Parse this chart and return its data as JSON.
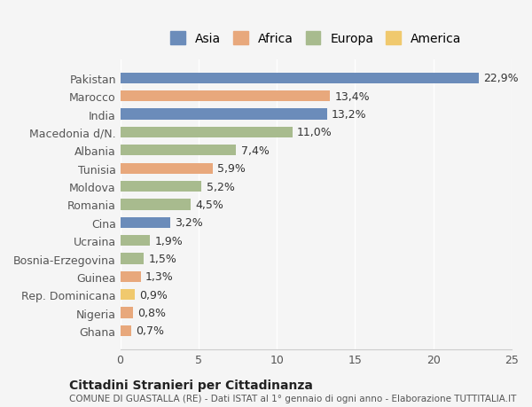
{
  "categories": [
    "Pakistan",
    "Marocco",
    "India",
    "Macedonia d/N.",
    "Albania",
    "Tunisia",
    "Moldova",
    "Romania",
    "Cina",
    "Ucraina",
    "Bosnia-Erzegovina",
    "Guinea",
    "Rep. Dominicana",
    "Nigeria",
    "Ghana"
  ],
  "values": [
    22.9,
    13.4,
    13.2,
    11.0,
    7.4,
    5.9,
    5.2,
    4.5,
    3.2,
    1.9,
    1.5,
    1.3,
    0.9,
    0.8,
    0.7
  ],
  "labels": [
    "22,9%",
    "13,4%",
    "13,2%",
    "11,0%",
    "7,4%",
    "5,9%",
    "5,2%",
    "4,5%",
    "3,2%",
    "1,9%",
    "1,5%",
    "1,3%",
    "0,9%",
    "0,8%",
    "0,7%"
  ],
  "continents": [
    "Asia",
    "Africa",
    "Asia",
    "Europa",
    "Europa",
    "Africa",
    "Europa",
    "Europa",
    "Asia",
    "Europa",
    "Europa",
    "Africa",
    "America",
    "Africa",
    "Africa"
  ],
  "colors": {
    "Asia": "#6b8cba",
    "Africa": "#e8a87c",
    "Europa": "#a8bb8e",
    "America": "#f0c96e"
  },
  "legend_order": [
    "Asia",
    "Africa",
    "Europa",
    "America"
  ],
  "xlim": [
    0,
    25
  ],
  "xticks": [
    0,
    5,
    10,
    15,
    20,
    25
  ],
  "background_color": "#f5f5f5",
  "title_main": "Cittadini Stranieri per Cittadinanza",
  "title_sub": "COMUNE DI GUASTALLA (RE) - Dati ISTAT al 1° gennaio di ogni anno - Elaborazione TUTTITALIA.IT",
  "bar_height": 0.6,
  "label_fontsize": 9,
  "tick_fontsize": 9
}
